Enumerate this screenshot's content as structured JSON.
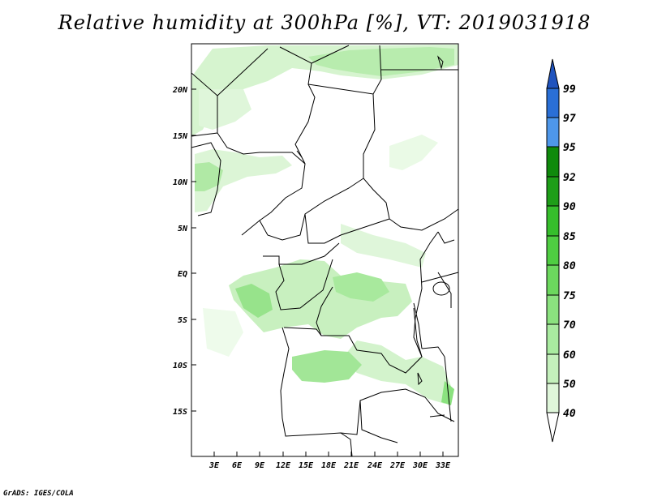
{
  "title": "Relative humidity at 300hPa [%], VT: 2019031918",
  "credit": "GrADS: IGES/COLA",
  "map": {
    "lat_labels": [
      "20N",
      "15N",
      "10N",
      "5N",
      "EQ",
      "5S",
      "10S",
      "15S"
    ],
    "lon_labels": [
      "3E",
      "6E",
      "9E",
      "12E",
      "15E",
      "18E",
      "21E",
      "24E",
      "27E",
      "30E",
      "33E"
    ]
  },
  "colorbar": {
    "levels": [
      "40",
      "50",
      "60",
      "70",
      "75",
      "80",
      "85",
      "90",
      "92",
      "95",
      "97",
      "99"
    ],
    "colors": [
      "#f0fbee",
      "#dff6da",
      "#c4f0bc",
      "#a9eba0",
      "#8be27f",
      "#6cd85e",
      "#4fcd42",
      "#36be2c",
      "#1e9e18",
      "#0f8a0c",
      "#4e97ea",
      "#2a6fd6",
      "#1f53be"
    ]
  },
  "chart_data": {
    "type": "heatmap",
    "title": "Relative humidity at 300hPa [%], VT: 2019031918",
    "ylabel_ticks": [
      "20N",
      "15N",
      "10N",
      "5N",
      "EQ",
      "5S",
      "10S",
      "15S"
    ],
    "xlabel_ticks": [
      "3E",
      "6E",
      "9E",
      "12E",
      "15E",
      "18E",
      "21E",
      "24E",
      "27E",
      "30E",
      "33E"
    ],
    "colorbar_levels": [
      40,
      50,
      60,
      70,
      75,
      80,
      85,
      90,
      92,
      95,
      97,
      99
    ]
  }
}
